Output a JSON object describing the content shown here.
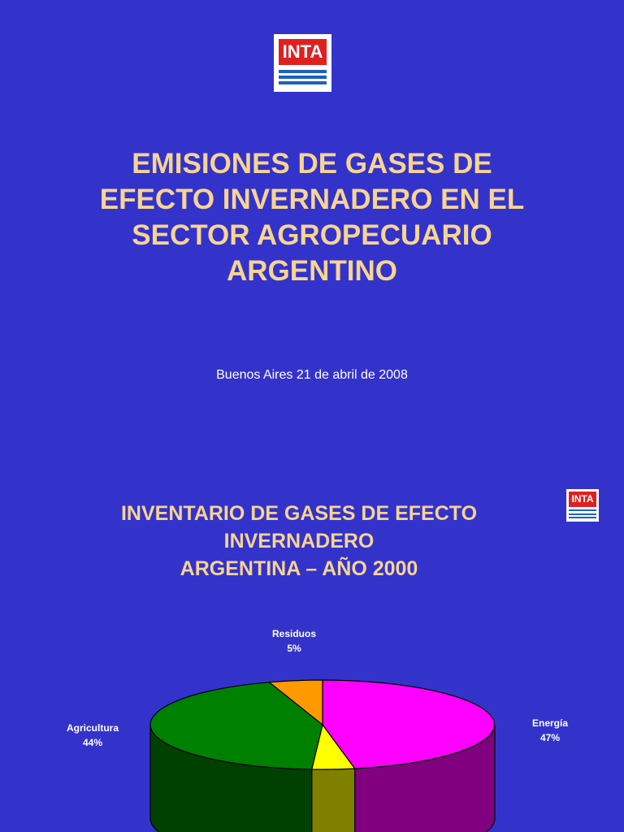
{
  "logo": {
    "text": "INTA"
  },
  "slide1": {
    "title_lines": [
      "EMISIONES DE GASES DE",
      "EFECTO INVERNADERO EN EL",
      "SECTOR AGROPECUARIO",
      "ARGENTINO"
    ],
    "date": "Buenos Aires 21 de abril de 2008"
  },
  "slide2": {
    "title_lines": [
      "INVENTARIO DE GASES DE EFECTO",
      "INVERNADERO",
      "ARGENTINA – AÑO 2000"
    ]
  },
  "chart_data": {
    "type": "pie",
    "title": "",
    "slices": [
      {
        "label": "Energía",
        "value": 47,
        "value_label": "47%",
        "color": "#ff00ff",
        "side_color": "#800080"
      },
      {
        "label": "",
        "value": 4,
        "value_label": "",
        "color": "#ffff00",
        "side_color": "#808000"
      },
      {
        "label": "Agricultura",
        "value": 44,
        "value_label": "44%",
        "color": "#008000",
        "side_color": "#004000"
      },
      {
        "label": "Residuos",
        "value": 5,
        "value_label": "5%",
        "color": "#ff9900",
        "side_color": "#804c00"
      }
    ]
  }
}
